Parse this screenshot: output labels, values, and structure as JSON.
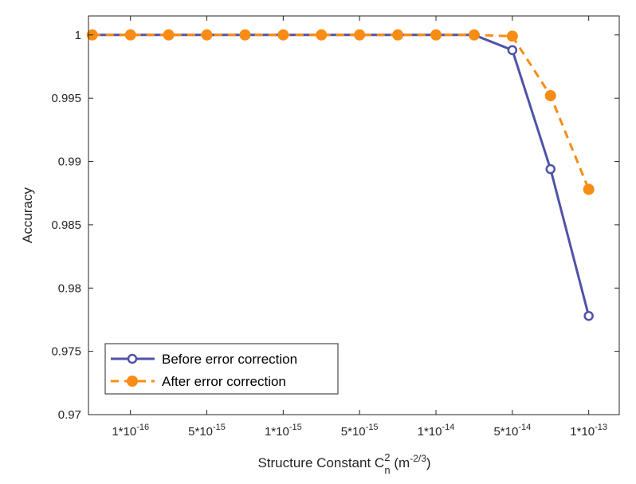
{
  "chart_data": {
    "type": "line",
    "title": "",
    "xlabel": {
      "prefix": "Structure Constant C",
      "sup": "2",
      "sub": "n",
      "unit_prefix": " (m",
      "unit_exp": "-2/3",
      "unit_suffix": ")"
    },
    "ylabel": "Accuracy",
    "x_index": [
      0,
      1,
      2,
      3,
      4,
      5,
      6,
      7,
      8,
      9,
      10,
      11,
      12,
      13
    ],
    "x_ticks": [
      {
        "index": 1,
        "mant": "1*10",
        "exp": "-16"
      },
      {
        "index": 3,
        "mant": "5*10",
        "exp": "-15"
      },
      {
        "index": 5,
        "mant": "1*10",
        "exp": "-15"
      },
      {
        "index": 7,
        "mant": "5*10",
        "exp": "-15"
      },
      {
        "index": 9,
        "mant": "1*10",
        "exp": "-14"
      },
      {
        "index": 11,
        "mant": "5*10",
        "exp": "-14"
      },
      {
        "index": 13,
        "mant": "1*10",
        "exp": "-13"
      }
    ],
    "xlim": [
      -0.1,
      13.8
    ],
    "ylim": [
      0.97,
      1.0015
    ],
    "y_ticks": [
      0.97,
      0.975,
      0.98,
      0.985,
      0.99,
      0.995,
      1
    ],
    "y_tick_labels": [
      "0.97",
      "0.975",
      "0.98",
      "0.985",
      "0.99",
      "0.995",
      "1"
    ],
    "grid": false,
    "legend_position": "bottom-left",
    "series": [
      {
        "name": "Before error correction",
        "color": "#4f53a8",
        "line_style": "solid",
        "marker": "open-circle",
        "points": [
          [
            0,
            1
          ],
          [
            1,
            1
          ],
          [
            2,
            1
          ],
          [
            3,
            1
          ],
          [
            4,
            1
          ],
          [
            5,
            1
          ],
          [
            6,
            1
          ],
          [
            7,
            1
          ],
          [
            8,
            1
          ],
          [
            9,
            1
          ],
          [
            10,
            1
          ],
          [
            11,
            0.9988
          ],
          [
            12,
            0.9894
          ],
          [
            13,
            0.9778
          ]
        ]
      },
      {
        "name": "After error correction",
        "color": "#f88c14",
        "line_style": "dashed",
        "marker": "filled-circle",
        "points": [
          [
            0,
            1
          ],
          [
            1,
            1
          ],
          [
            2,
            1
          ],
          [
            3,
            1
          ],
          [
            4,
            1
          ],
          [
            5,
            1
          ],
          [
            6,
            1
          ],
          [
            7,
            1
          ],
          [
            8,
            1
          ],
          [
            9,
            1
          ],
          [
            10,
            1
          ],
          [
            11,
            0.9999
          ],
          [
            12,
            0.9952
          ],
          [
            13,
            0.9878
          ]
        ]
      }
    ]
  }
}
